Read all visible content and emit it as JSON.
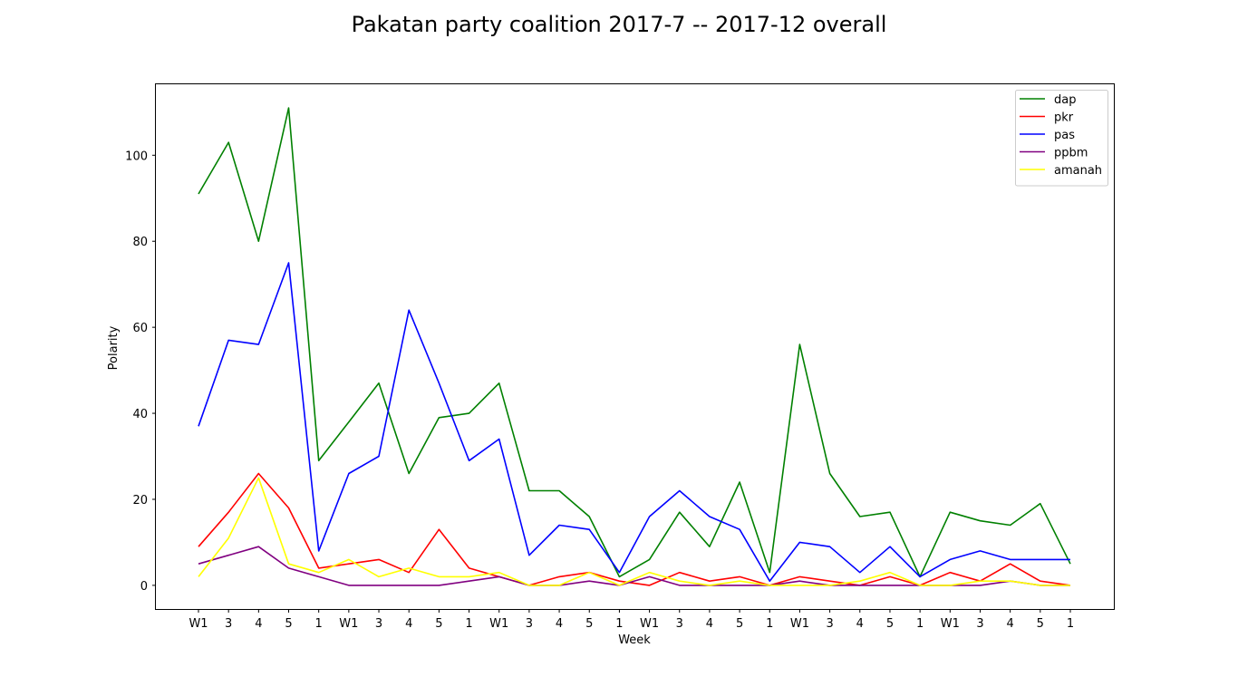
{
  "chart_data": {
    "type": "line",
    "title": "Pakatan party coalition 2017-7 -- 2017-12 overall",
    "xlabel": "Week",
    "ylabel": "Polarity",
    "categories": [
      "W1",
      "3",
      "4",
      "5",
      "1",
      "W1",
      "3",
      "4",
      "5",
      "1",
      "W1",
      "3",
      "4",
      "5",
      "1",
      "W1",
      "3",
      "4",
      "5",
      "1",
      "W1",
      "3",
      "4",
      "5",
      "1",
      "W1",
      "3",
      "4",
      "5",
      "1"
    ],
    "ylim": [
      -5.5,
      116.5
    ],
    "yticks": [
      0,
      20,
      40,
      60,
      80,
      100
    ],
    "legend_position": "top-right",
    "grid": false,
    "series": [
      {
        "name": "dap",
        "color": "#008000",
        "values": [
          91,
          103,
          80,
          111,
          29,
          38,
          47,
          26,
          39,
          40,
          47,
          22,
          22,
          16,
          2,
          6,
          17,
          9,
          24,
          3,
          56,
          26,
          16,
          17,
          2,
          17,
          15,
          14,
          19,
          5
        ]
      },
      {
        "name": "pkr",
        "color": "#ff0000",
        "values": [
          9,
          17,
          26,
          18,
          4,
          5,
          6,
          3,
          13,
          4,
          2,
          0,
          2,
          3,
          1,
          0,
          3,
          1,
          2,
          0,
          2,
          1,
          0,
          2,
          0,
          3,
          1,
          5,
          1,
          0
        ]
      },
      {
        "name": "pas",
        "color": "#0000ff",
        "values": [
          37,
          57,
          56,
          75,
          8,
          26,
          30,
          64,
          47,
          29,
          34,
          7,
          14,
          13,
          3,
          16,
          22,
          16,
          13,
          1,
          10,
          9,
          3,
          9,
          2,
          6,
          8,
          6,
          6,
          6
        ]
      },
      {
        "name": "ppbm",
        "color": "#800080",
        "values": [
          5,
          7,
          9,
          4,
          2,
          0,
          0,
          0,
          0,
          1,
          2,
          0,
          0,
          1,
          0,
          2,
          0,
          0,
          0,
          0,
          1,
          0,
          0,
          0,
          0,
          0,
          0,
          1,
          0,
          0
        ]
      },
      {
        "name": "amanah",
        "color": "#ffff00",
        "values": [
          2,
          11,
          25,
          5,
          3,
          6,
          2,
          4,
          2,
          2,
          3,
          0,
          0,
          3,
          0,
          3,
          1,
          0,
          1,
          0,
          0,
          0,
          1,
          3,
          0,
          0,
          1,
          1,
          0,
          0
        ]
      }
    ]
  }
}
